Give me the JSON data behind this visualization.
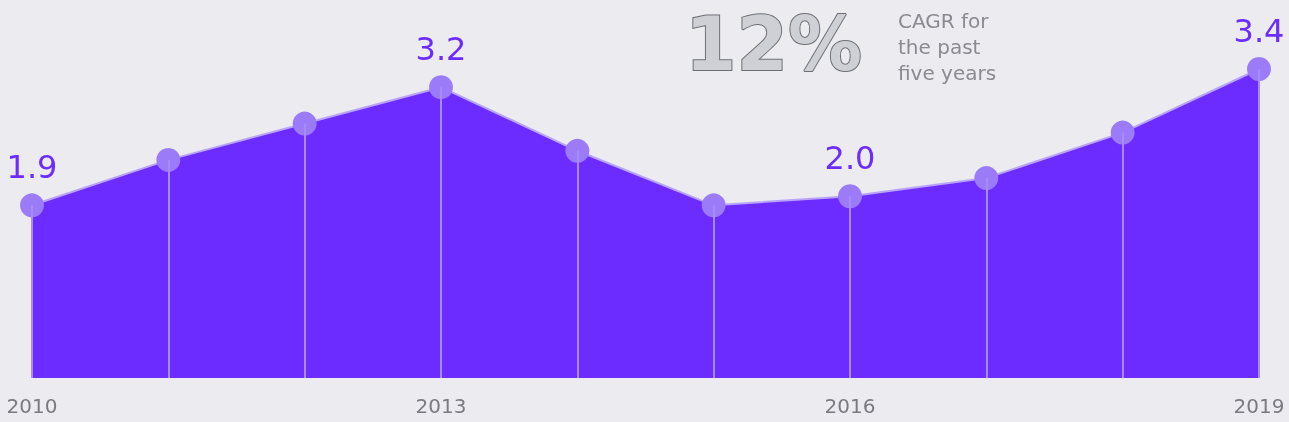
{
  "chart_data": {
    "type": "area",
    "categories": [
      "2010",
      null,
      null,
      "2013",
      null,
      null,
      "2016",
      null,
      null,
      "2019"
    ],
    "series": [
      {
        "color": "#6c2bff",
        "values": [
          1.9,
          2.4,
          2.8,
          3.2,
          2.5,
          1.9,
          2.0,
          2.2,
          2.7,
          3.4
        ],
        "value_labels": [
          "1.9",
          null,
          null,
          "3.2",
          null,
          null,
          "2.0",
          null,
          null,
          "3.4"
        ]
      }
    ],
    "marker": "circle",
    "grid": "x",
    "annotations": [
      "12%",
      "CAGR for the past five years"
    ]
  }
}
